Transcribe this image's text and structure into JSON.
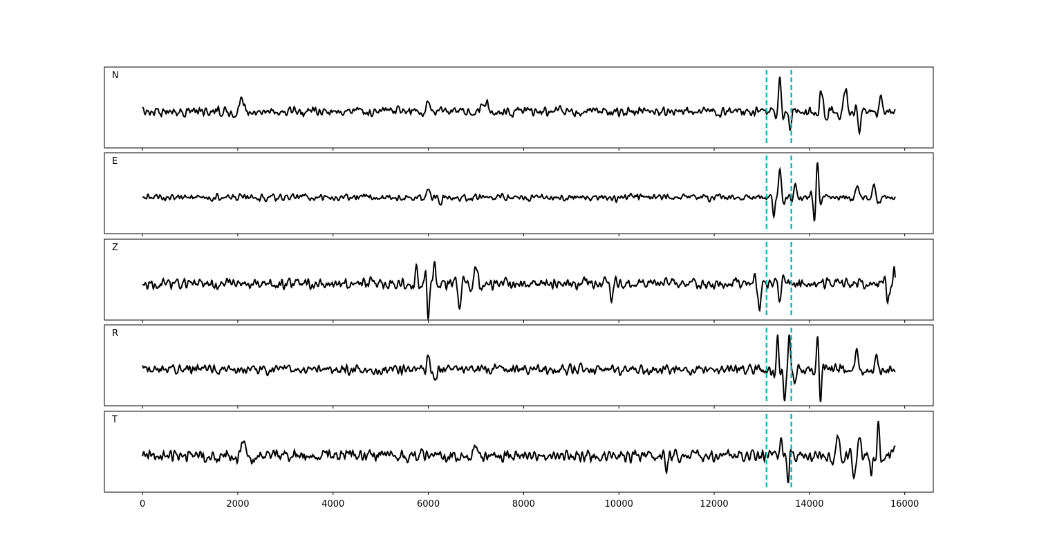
{
  "chart_data": {
    "type": "line",
    "x_range": [
      -800,
      16600
    ],
    "x_ticks": [
      0,
      2000,
      4000,
      6000,
      8000,
      10000,
      12000,
      14000,
      16000
    ],
    "x_tick_labels": [
      "0",
      "2000",
      "4000",
      "6000",
      "8000",
      "10000",
      "12000",
      "14000",
      "16000"
    ],
    "x_data_range": [
      0,
      15800
    ],
    "shared_x": true,
    "markers": {
      "x": [
        13100,
        13620
      ],
      "style": "dashed",
      "color": "#14b8b8"
    },
    "trace_color": "#000000",
    "panels": [
      {
        "label": "N",
        "events": [
          [
            2100,
            2.2,
            150
          ],
          [
            6000,
            1.6,
            120
          ],
          [
            7200,
            1.5,
            200
          ],
          [
            13380,
            5.5,
            70
          ],
          [
            13600,
            -3.0,
            60
          ],
          [
            14250,
            3.5,
            90
          ],
          [
            14750,
            3.8,
            110
          ],
          [
            15050,
            -3.2,
            70
          ],
          [
            15500,
            3.4,
            80
          ]
        ]
      },
      {
        "label": "E",
        "events": [
          [
            6000,
            1.8,
            80
          ],
          [
            6250,
            -1.2,
            90
          ],
          [
            13380,
            6.2,
            70
          ],
          [
            13250,
            -4.0,
            60
          ],
          [
            13700,
            2.8,
            80
          ],
          [
            14170,
            6.0,
            60
          ],
          [
            14100,
            -3.5,
            60
          ],
          [
            15000,
            2.5,
            100
          ],
          [
            15350,
            3.0,
            90
          ]
        ]
      },
      {
        "label": "Z",
        "events": [
          [
            5750,
            2.5,
            60
          ],
          [
            6000,
            -5.5,
            60
          ],
          [
            6130,
            3.5,
            60
          ],
          [
            6650,
            -3.5,
            80
          ],
          [
            7000,
            3.0,
            100
          ],
          [
            9850,
            -3.0,
            80
          ],
          [
            12950,
            -3.5,
            90
          ],
          [
            13380,
            -3.0,
            70
          ],
          [
            15650,
            -2.5,
            80
          ],
          [
            15780,
            2.2,
            50
          ]
        ]
      },
      {
        "label": "R",
        "events": [
          [
            6000,
            2.5,
            70
          ],
          [
            6150,
            -1.8,
            70
          ],
          [
            13330,
            5.0,
            60
          ],
          [
            13480,
            -5.0,
            60
          ],
          [
            13580,
            5.0,
            60
          ],
          [
            13700,
            -2.0,
            60
          ],
          [
            14170,
            4.5,
            60
          ],
          [
            14230,
            -4.5,
            60
          ],
          [
            15000,
            2.5,
            100
          ],
          [
            15400,
            2.5,
            80
          ]
        ]
      },
      {
        "label": "T",
        "events": [
          [
            2100,
            2.0,
            150
          ],
          [
            7000,
            1.6,
            120
          ],
          [
            11000,
            -2.0,
            80
          ],
          [
            13550,
            -3.5,
            60
          ],
          [
            13400,
            2.2,
            60
          ],
          [
            14600,
            3.0,
            90
          ],
          [
            14930,
            -3.2,
            80
          ],
          [
            15050,
            2.8,
            80
          ],
          [
            15450,
            4.5,
            60
          ],
          [
            15300,
            -2.5,
            60
          ],
          [
            15800,
            1.5,
            50
          ]
        ]
      }
    ]
  },
  "colors": {
    "trace": "#000000",
    "marker": "#14b8b8",
    "frame": "#000000",
    "background": "#ffffff"
  }
}
